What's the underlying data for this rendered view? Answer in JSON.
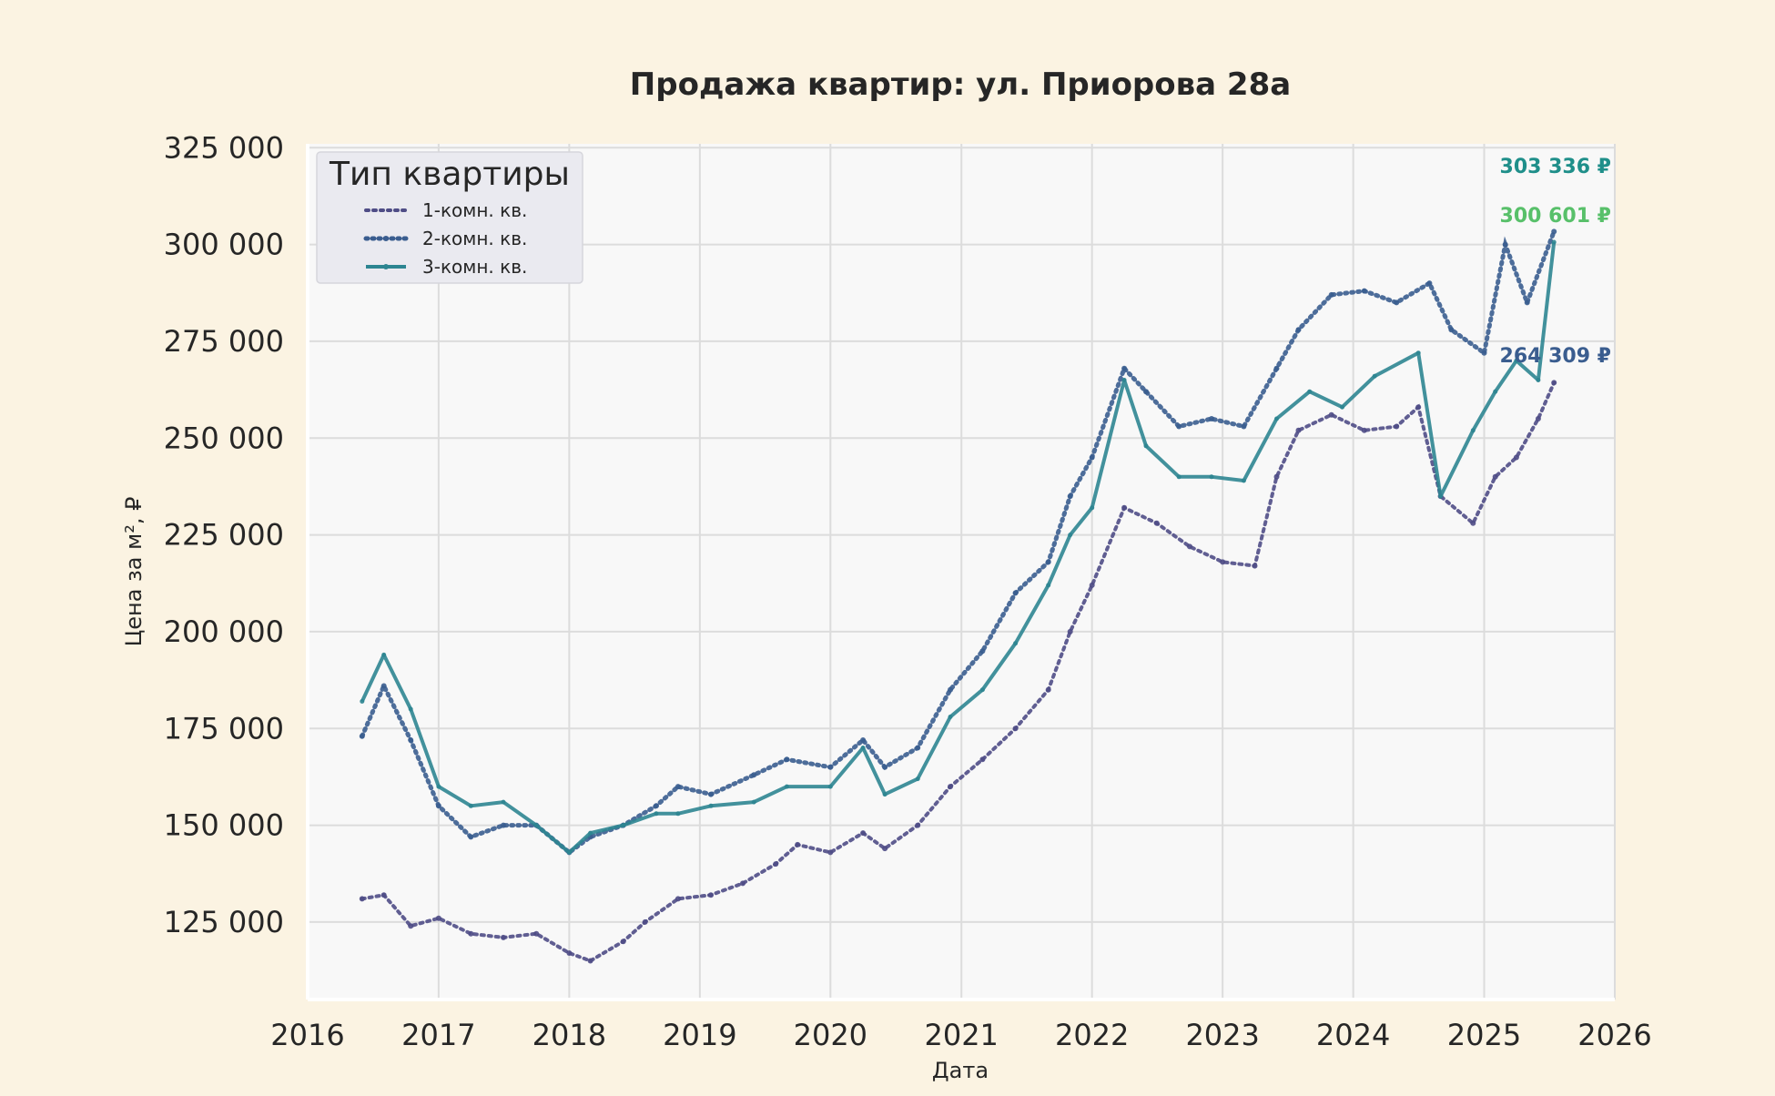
{
  "chart_data": {
    "type": "line",
    "title": "Продажа квартир: ул. Приорова 28а",
    "xlabel": "Дата",
    "ylabel": "Цена за м², ₽",
    "xlim": [
      "2016-01-01",
      "2026-01-01"
    ],
    "ylim": [
      105000,
      326000
    ],
    "x_ticks": [
      "2016",
      "2017",
      "2018",
      "2019",
      "2020",
      "2021",
      "2022",
      "2023",
      "2024",
      "2025",
      "2026"
    ],
    "y_ticks": [
      {
        "value": 125000,
        "label": "125 000"
      },
      {
        "value": 150000,
        "label": "150 000"
      },
      {
        "value": 175000,
        "label": "175 000"
      },
      {
        "value": 200000,
        "label": "200 000"
      },
      {
        "value": 225000,
        "label": "225 000"
      },
      {
        "value": 250000,
        "label": "250 000"
      },
      {
        "value": 275000,
        "label": "275 000"
      },
      {
        "value": 300000,
        "label": "300 000"
      },
      {
        "value": 325000,
        "label": "325 000"
      }
    ],
    "grid": true,
    "legend": {
      "title": "Тип квартиры",
      "position": "top-left"
    },
    "colors": {
      "background": "#fbf3e2",
      "plot_bg": "#f8f8f8",
      "grid": "#dcdcdc",
      "text": "#262626"
    },
    "series": [
      {
        "name": "1-комн. кв.",
        "color": "#4f4d86",
        "style": "dotted",
        "points": [
          [
            "2016-06-01",
            131000
          ],
          [
            "2016-08-01",
            132000
          ],
          [
            "2016-10-15",
            124000
          ],
          [
            "2017-01-01",
            126000
          ],
          [
            "2017-04-01",
            122000
          ],
          [
            "2017-07-01",
            121000
          ],
          [
            "2017-10-01",
            122000
          ],
          [
            "2018-01-01",
            117000
          ],
          [
            "2018-03-01",
            115000
          ],
          [
            "2018-06-01",
            120000
          ],
          [
            "2018-08-01",
            125000
          ],
          [
            "2018-11-01",
            131000
          ],
          [
            "2019-02-01",
            132000
          ],
          [
            "2019-05-01",
            135000
          ],
          [
            "2019-08-01",
            140000
          ],
          [
            "2019-10-01",
            145000
          ],
          [
            "2020-01-01",
            143000
          ],
          [
            "2020-04-01",
            148000
          ],
          [
            "2020-06-01",
            144000
          ],
          [
            "2020-09-01",
            150000
          ],
          [
            "2020-12-01",
            160000
          ],
          [
            "2021-03-01",
            167000
          ],
          [
            "2021-06-01",
            175000
          ],
          [
            "2021-09-01",
            185000
          ],
          [
            "2021-11-01",
            200000
          ],
          [
            "2022-01-01",
            212000
          ],
          [
            "2022-04-01",
            232000
          ],
          [
            "2022-07-01",
            228000
          ],
          [
            "2022-10-01",
            222000
          ],
          [
            "2023-01-01",
            218000
          ],
          [
            "2023-04-01",
            217000
          ],
          [
            "2023-06-01",
            240000
          ],
          [
            "2023-08-01",
            252000
          ],
          [
            "2023-11-01",
            256000
          ],
          [
            "2024-02-01",
            252000
          ],
          [
            "2024-05-01",
            253000
          ],
          [
            "2024-07-01",
            258000
          ],
          [
            "2024-09-01",
            235000
          ],
          [
            "2024-12-01",
            228000
          ],
          [
            "2025-02-01",
            240000
          ],
          [
            "2025-04-01",
            245000
          ],
          [
            "2025-06-01",
            255000
          ],
          [
            "2025-07-15",
            264309
          ]
        ],
        "end_label": "264 309 ₽"
      },
      {
        "name": "2-комн. кв.",
        "color": "#3a5d8f",
        "style": "dotted-marker",
        "points": [
          [
            "2016-06-01",
            173000
          ],
          [
            "2016-08-01",
            186000
          ],
          [
            "2016-10-15",
            172000
          ],
          [
            "2017-01-01",
            155000
          ],
          [
            "2017-04-01",
            147000
          ],
          [
            "2017-07-01",
            150000
          ],
          [
            "2017-10-01",
            150000
          ],
          [
            "2018-01-01",
            143000
          ],
          [
            "2018-03-01",
            147000
          ],
          [
            "2018-06-01",
            150000
          ],
          [
            "2018-09-01",
            155000
          ],
          [
            "2018-11-01",
            160000
          ],
          [
            "2019-02-01",
            158000
          ],
          [
            "2019-06-01",
            163000
          ],
          [
            "2019-09-01",
            167000
          ],
          [
            "2020-01-01",
            165000
          ],
          [
            "2020-04-01",
            172000
          ],
          [
            "2020-06-01",
            165000
          ],
          [
            "2020-09-01",
            170000
          ],
          [
            "2020-12-01",
            185000
          ],
          [
            "2021-03-01",
            195000
          ],
          [
            "2021-06-01",
            210000
          ],
          [
            "2021-09-01",
            218000
          ],
          [
            "2021-11-01",
            235000
          ],
          [
            "2022-01-01",
            245000
          ],
          [
            "2022-04-01",
            268000
          ],
          [
            "2022-06-01",
            262000
          ],
          [
            "2022-09-01",
            253000
          ],
          [
            "2022-12-01",
            255000
          ],
          [
            "2023-03-01",
            253000
          ],
          [
            "2023-06-01",
            268000
          ],
          [
            "2023-08-01",
            278000
          ],
          [
            "2023-11-01",
            287000
          ],
          [
            "2024-02-01",
            288000
          ],
          [
            "2024-05-01",
            285000
          ],
          [
            "2024-08-01",
            290000
          ],
          [
            "2024-10-01",
            278000
          ],
          [
            "2025-01-01",
            272000
          ],
          [
            "2025-03-01",
            300000
          ],
          [
            "2025-05-01",
            285000
          ],
          [
            "2025-07-15",
            303336
          ]
        ],
        "end_label": "303 336 ₽"
      },
      {
        "name": "3-комн. кв.",
        "color": "#2d8591",
        "style": "solid",
        "points": [
          [
            "2016-06-01",
            182000
          ],
          [
            "2016-08-01",
            194000
          ],
          [
            "2016-10-15",
            180000
          ],
          [
            "2017-01-01",
            160000
          ],
          [
            "2017-04-01",
            155000
          ],
          [
            "2017-07-01",
            156000
          ],
          [
            "2017-10-01",
            150000
          ],
          [
            "2018-01-01",
            143000
          ],
          [
            "2018-03-01",
            148000
          ],
          [
            "2018-06-01",
            150000
          ],
          [
            "2018-09-01",
            153000
          ],
          [
            "2018-11-01",
            153000
          ],
          [
            "2019-02-01",
            155000
          ],
          [
            "2019-06-01",
            156000
          ],
          [
            "2019-09-01",
            160000
          ],
          [
            "2020-01-01",
            160000
          ],
          [
            "2020-04-01",
            170000
          ],
          [
            "2020-06-01",
            158000
          ],
          [
            "2020-09-01",
            162000
          ],
          [
            "2020-12-01",
            178000
          ],
          [
            "2021-03-01",
            185000
          ],
          [
            "2021-06-01",
            197000
          ],
          [
            "2021-09-01",
            212000
          ],
          [
            "2021-11-01",
            225000
          ],
          [
            "2022-01-01",
            232000
          ],
          [
            "2022-04-01",
            265000
          ],
          [
            "2022-06-01",
            248000
          ],
          [
            "2022-09-01",
            240000
          ],
          [
            "2022-12-01",
            240000
          ],
          [
            "2023-03-01",
            239000
          ],
          [
            "2023-06-01",
            255000
          ],
          [
            "2023-09-01",
            262000
          ],
          [
            "2023-12-01",
            258000
          ],
          [
            "2024-03-01",
            266000
          ],
          [
            "2024-07-01",
            272000
          ],
          [
            "2024-09-01",
            235000
          ],
          [
            "2024-12-01",
            252000
          ],
          [
            "2025-02-01",
            262000
          ],
          [
            "2025-04-01",
            270000
          ],
          [
            "2025-06-01",
            265000
          ],
          [
            "2025-07-15",
            300601
          ]
        ],
        "end_label": "300 601 ₽"
      }
    ],
    "end_label_colors": [
      "#3a5d8f",
      "#1f8f8a",
      "#58c06a"
    ]
  }
}
